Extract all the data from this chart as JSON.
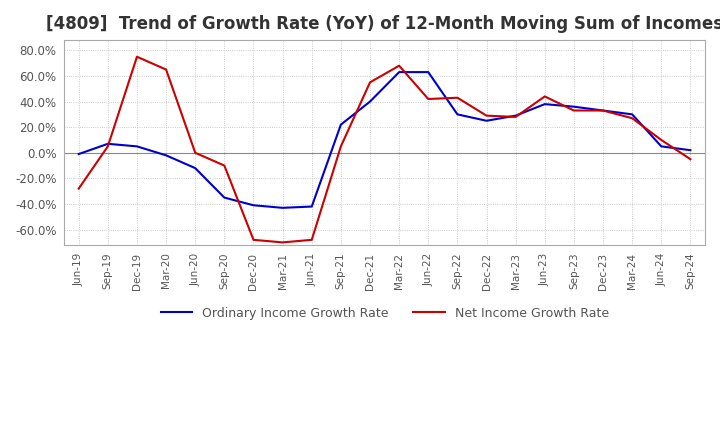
{
  "title": "[4809]  Trend of Growth Rate (YoY) of 12-Month Moving Sum of Incomes",
  "ylim": [
    -0.72,
    0.88
  ],
  "yticks": [
    -0.6,
    -0.4,
    -0.2,
    0.0,
    0.2,
    0.4,
    0.6,
    0.8
  ],
  "x_labels": [
    "Jun-19",
    "Sep-19",
    "Dec-19",
    "Mar-20",
    "Jun-20",
    "Sep-20",
    "Dec-20",
    "Mar-21",
    "Jun-21",
    "Sep-21",
    "Dec-21",
    "Mar-22",
    "Jun-22",
    "Sep-22",
    "Dec-22",
    "Mar-23",
    "Jun-23",
    "Sep-23",
    "Dec-23",
    "Mar-24",
    "Jun-24",
    "Sep-24"
  ],
  "ordinary_income": [
    -0.01,
    0.07,
    0.05,
    -0.02,
    -0.12,
    -0.35,
    -0.41,
    -0.43,
    -0.42,
    0.22,
    0.4,
    0.63,
    0.63,
    0.3,
    0.25,
    0.29,
    0.38,
    0.36,
    0.33,
    0.3,
    0.05,
    0.02
  ],
  "net_income": [
    -0.28,
    0.05,
    0.75,
    0.65,
    0.0,
    -0.1,
    -0.68,
    -0.7,
    -0.68,
    0.05,
    0.55,
    0.68,
    0.42,
    0.43,
    0.29,
    0.28,
    0.44,
    0.33,
    0.33,
    0.27,
    0.1,
    -0.05
  ],
  "ordinary_color": "#0000cc",
  "net_color": "#cc0000",
  "grid_color": "#bbbbbb",
  "bg_color": "#ffffff",
  "title_fontsize": 12,
  "legend_ordinary": "Ordinary Income Growth Rate",
  "legend_net": "Net Income Growth Rate"
}
